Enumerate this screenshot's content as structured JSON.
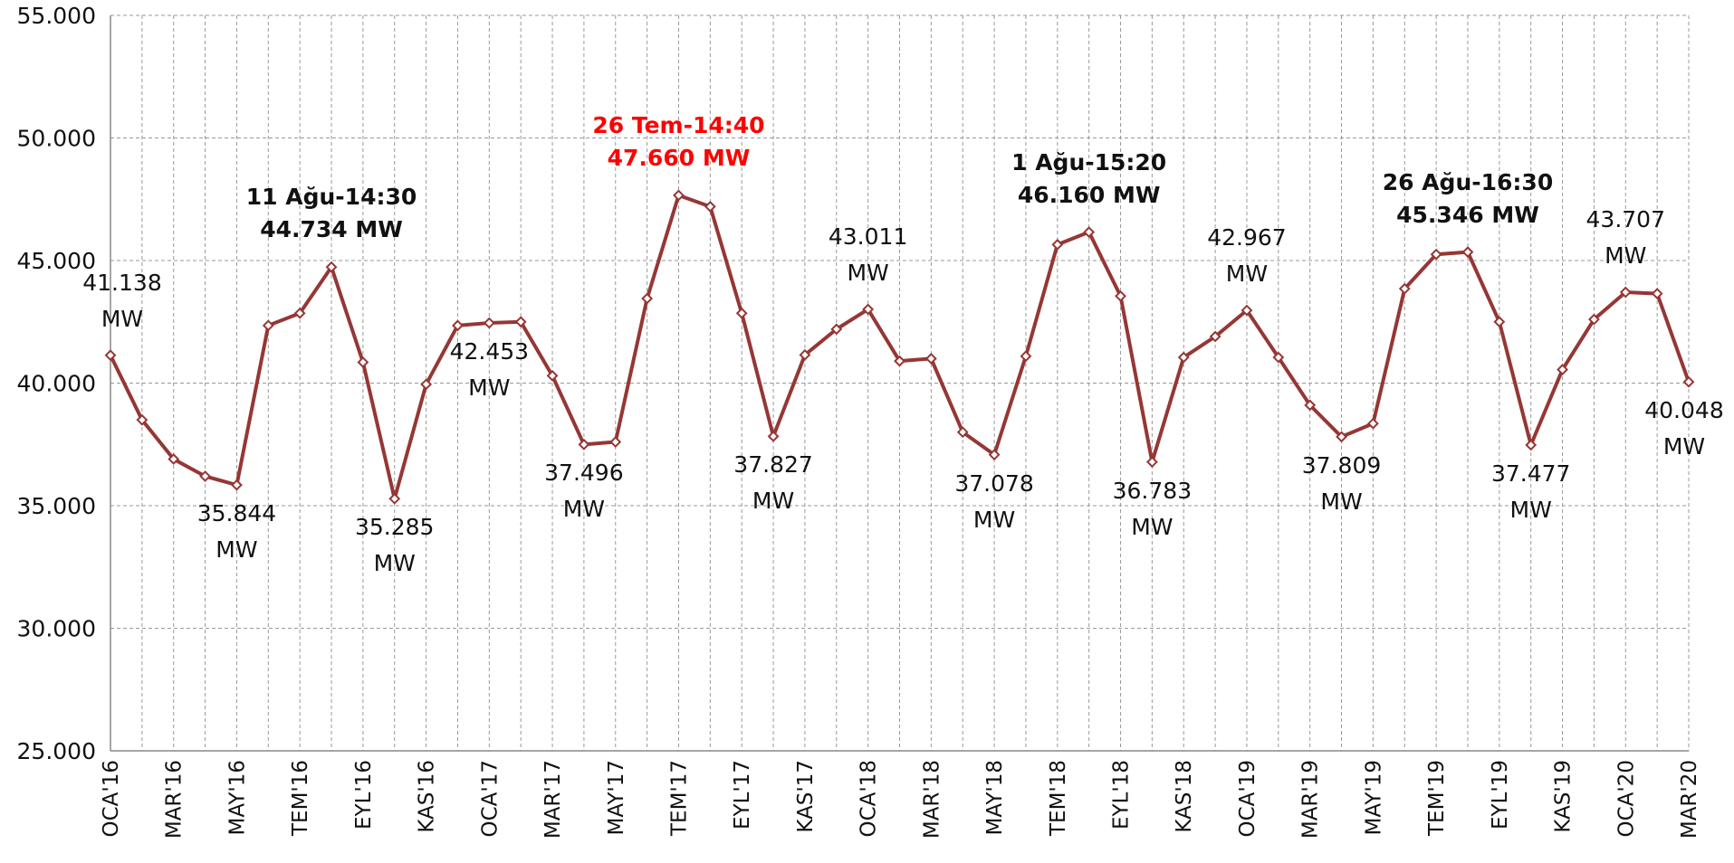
{
  "chart_data": {
    "type": "line",
    "categories": [
      "OCA'16",
      null,
      "MAR'16",
      null,
      "MAY'16",
      null,
      "TEM'16",
      null,
      "EYL'16",
      null,
      "KAS'16",
      null,
      "OCA'17",
      null,
      "MAR'17",
      null,
      "MAY'17",
      null,
      "TEM'17",
      null,
      "EYL'17",
      null,
      "KAS'17",
      null,
      "OCA'18",
      null,
      "MAR'18",
      null,
      "MAY'18",
      null,
      "TEM'18",
      null,
      "EYL'18",
      null,
      "KAS'18",
      null,
      "OCA'19",
      null,
      "MAR'19",
      null,
      "MAY'19",
      null,
      "TEM'19",
      null,
      "EYL'19",
      null,
      "KAS'19",
      null,
      "OCA'20",
      null,
      "MAR'20"
    ],
    "series": [
      {
        "color": "#953735",
        "values": [
          41138,
          38500,
          36900,
          36200,
          35844,
          42350,
          42850,
          44734,
          40850,
          35285,
          39950,
          42350,
          42453,
          42500,
          40300,
          37496,
          37600,
          43450,
          47660,
          47200,
          42850,
          37827,
          41150,
          42200,
          43011,
          40900,
          41000,
          38000,
          37078,
          41100,
          45650,
          46160,
          43550,
          36783,
          41050,
          41900,
          42967,
          41050,
          39100,
          37809,
          38350,
          43850,
          45250,
          45346,
          42500,
          37477,
          40550,
          42600,
          43707,
          43650,
          40048
        ],
        "value_labels": [
          "41.138 MW",
          null,
          null,
          null,
          "35.844 MW",
          null,
          null,
          "44.734 MW",
          null,
          "35.285 MW",
          null,
          null,
          "42.453 MW",
          null,
          null,
          "37.496 MW",
          null,
          null,
          "47.660 MW",
          null,
          null,
          "37.827 MW",
          null,
          null,
          "43.011 MW",
          null,
          null,
          null,
          "37.078 MW",
          null,
          null,
          "46.160 MW",
          null,
          "36.783 MW",
          null,
          null,
          "42.967 MW",
          null,
          null,
          "37.809 MW",
          null,
          null,
          null,
          "45.346 MW",
          null,
          "37.477 MW",
          null,
          null,
          "43.707 MW",
          null,
          "40.048 MW"
        ],
        "peak_times": [
          null,
          null,
          null,
          null,
          null,
          null,
          null,
          "11 Ağu-14:30",
          null,
          null,
          null,
          null,
          null,
          null,
          null,
          null,
          null,
          null,
          "26 Tem-14:40",
          null,
          null,
          null,
          null,
          null,
          null,
          null,
          null,
          null,
          null,
          null,
          null,
          "1 Ağu-15:20",
          null,
          null,
          null,
          null,
          null,
          null,
          null,
          null,
          null,
          null,
          null,
          "26 Ağu-16:30",
          null,
          null,
          null,
          null,
          null,
          null,
          null
        ]
      }
    ],
    "record_color": "#ff0000",
    "ylim": [
      25000,
      55000
    ],
    "yticks": [
      {
        "value": 25000,
        "label": "25.000"
      },
      {
        "value": 30000,
        "label": "30.000"
      },
      {
        "value": 35000,
        "label": "35.000"
      },
      {
        "value": 40000,
        "label": "40.000"
      },
      {
        "value": 45000,
        "label": "45.000"
      },
      {
        "value": 50000,
        "label": "50.000"
      },
      {
        "value": 55000,
        "label": "55.000"
      }
    ],
    "grid": true
  }
}
